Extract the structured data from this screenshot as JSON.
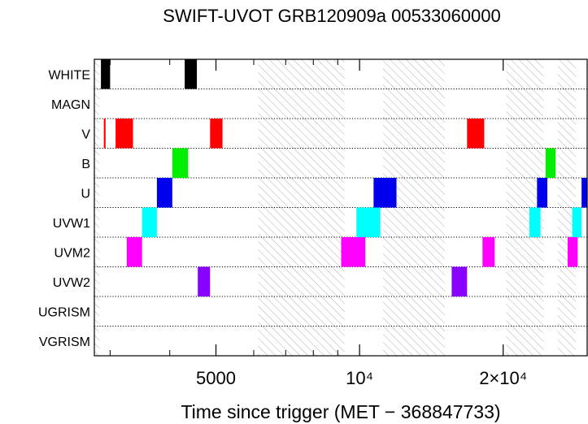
{
  "chart_data": {
    "type": "timeline",
    "title": "SWIFT-UVOT GRB120909a 00533060000",
    "xlabel": "Time since trigger (MET − 368847733)",
    "ylabel": "",
    "x_scale": "log",
    "xlim": [
      2780,
      30000
    ],
    "x_ticks": [
      {
        "value": 5000,
        "label": "5000"
      },
      {
        "value": 10000,
        "label": "10⁴"
      },
      {
        "value": 20000,
        "label": "2×10⁴"
      }
    ],
    "x_minor_ticks": [
      3000,
      4000,
      6000,
      7000,
      8000,
      9000,
      30000
    ],
    "categories": [
      "WHITE",
      "MAGN",
      "V",
      "B",
      "U",
      "UVW1",
      "UVM2",
      "UVW2",
      "UGRISM",
      "VGRISM"
    ],
    "grid": "dotted row separators",
    "hatched_intervals": [
      [
        2780,
        2850
      ],
      [
        6130,
        9300
      ],
      [
        11200,
        15100
      ],
      [
        20300,
        24300
      ],
      [
        26000,
        28400
      ]
    ],
    "segments": [
      {
        "filter": "WHITE",
        "start": 2870,
        "end": 3000,
        "color": "#000000"
      },
      {
        "filter": "WHITE",
        "start": 4300,
        "end": 4560,
        "color": "#000000"
      },
      {
        "filter": "V",
        "start": 2910,
        "end": 2935,
        "color": "#ff0000"
      },
      {
        "filter": "V",
        "start": 3080,
        "end": 3350,
        "color": "#ff0000"
      },
      {
        "filter": "V",
        "start": 4860,
        "end": 5160,
        "color": "#ff0000"
      },
      {
        "filter": "V",
        "start": 16800,
        "end": 18250,
        "color": "#ff0000"
      },
      {
        "filter": "B",
        "start": 4050,
        "end": 4370,
        "color": "#00ee00"
      },
      {
        "filter": "B",
        "start": 24550,
        "end": 25750,
        "color": "#00ee00"
      },
      {
        "filter": "U",
        "start": 3760,
        "end": 4050,
        "color": "#0000ee"
      },
      {
        "filter": "U",
        "start": 10700,
        "end": 11950,
        "color": "#0000ee"
      },
      {
        "filter": "U",
        "start": 23550,
        "end": 24750,
        "color": "#0000ee"
      },
      {
        "filter": "U",
        "start": 29200,
        "end": 30000,
        "color": "#0000ee"
      },
      {
        "filter": "UVW1",
        "start": 3500,
        "end": 3760,
        "color": "#00ffff"
      },
      {
        "filter": "UVW1",
        "start": 9850,
        "end": 11050,
        "color": "#00ffff"
      },
      {
        "filter": "UVW1",
        "start": 22700,
        "end": 23950,
        "color": "#00ffff"
      },
      {
        "filter": "UVW1",
        "start": 27900,
        "end": 29200,
        "color": "#00ffff"
      },
      {
        "filter": "UVM2",
        "start": 3250,
        "end": 3500,
        "color": "#ff00ff"
      },
      {
        "filter": "UVM2",
        "start": 9150,
        "end": 10280,
        "color": "#ff00ff"
      },
      {
        "filter": "UVM2",
        "start": 18100,
        "end": 19200,
        "color": "#ff00ff"
      },
      {
        "filter": "UVM2",
        "start": 27300,
        "end": 28650,
        "color": "#ff00ff"
      },
      {
        "filter": "UVW2",
        "start": 4580,
        "end": 4860,
        "color": "#8800ff"
      },
      {
        "filter": "UVW2",
        "start": 15600,
        "end": 16800,
        "color": "#8800ff"
      }
    ]
  }
}
